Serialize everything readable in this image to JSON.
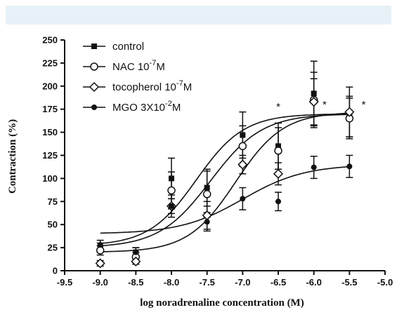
{
  "chart_data": {
    "type": "scatter",
    "xlabel": "log noradrenaline concentration (M)",
    "ylabel": "Contraction (%)",
    "xlim": [
      -9.5,
      -5.0
    ],
    "ylim": [
      0,
      250
    ],
    "x_ticks": [
      "-9.5",
      "-9.0",
      "-8.5",
      "-8.0",
      "-7.5",
      "-7.0",
      "-6.5",
      "-6.0",
      "-5.5",
      "-5.0"
    ],
    "y_ticks": [
      "0",
      "25",
      "50",
      "75",
      "100",
      "125",
      "150",
      "175",
      "200",
      "225",
      "250"
    ],
    "legend_position": "top-left",
    "significance_marks": [
      {
        "label": "*",
        "x": -6.5,
        "y": 178
      },
      {
        "label": "*",
        "x": -5.85,
        "y": 180
      },
      {
        "label": "*",
        "x": -5.3,
        "y": 180
      }
    ],
    "series": [
      {
        "name": "control",
        "marker": "square",
        "x": [
          -9.0,
          -8.5,
          -8.0,
          -7.5,
          -7.0,
          -6.5,
          -6.0,
          -5.5
        ],
        "y": [
          25,
          20,
          100,
          90,
          147,
          135,
          192,
          167
        ],
        "err": [
          5,
          5,
          22,
          20,
          25,
          25,
          35,
          22
        ],
        "curve": {
          "bottom": 27,
          "top": 170,
          "log_ec50": -7.65,
          "hill": 1.3
        }
      },
      {
        "name": "NAC 10^-7M",
        "legend_parts": [
          "NAC 10",
          "-7",
          "M"
        ],
        "marker": "circle-open",
        "x": [
          -9.0,
          -8.5,
          -8.0,
          -7.5,
          -7.0,
          -6.5,
          -6.0,
          -5.5
        ],
        "y": [
          22,
          15,
          87,
          83,
          135,
          130,
          185,
          165
        ],
        "err": [
          5,
          5,
          20,
          25,
          22,
          25,
          30,
          22
        ],
        "curve": {
          "bottom": 25,
          "top": 170,
          "log_ec50": -7.45,
          "hill": 1.2
        }
      },
      {
        "name": "tocopherol 10^-7M",
        "legend_parts": [
          "tocopherol 10",
          "-7",
          "M"
        ],
        "marker": "diamond-open",
        "x": [
          -9.0,
          -8.5,
          -8.0,
          -7.5,
          -7.0,
          -6.5,
          -6.0,
          -5.5
        ],
        "y": [
          8,
          10,
          70,
          60,
          115,
          105,
          183,
          172
        ],
        "err": [
          3,
          3,
          12,
          15,
          10,
          12,
          25,
          27
        ],
        "curve": {
          "bottom": 20,
          "top": 172,
          "log_ec50": -7.1,
          "hill": 1.3
        }
      },
      {
        "name": "MGO 3X10^-2M",
        "legend_parts": [
          "MGO 3X10",
          "-2",
          "M"
        ],
        "marker": "circle-filled",
        "x": [
          -9.0,
          -8.5,
          -8.0,
          -7.5,
          -7.0,
          -6.5,
          -6.0,
          -5.5
        ],
        "y": [
          28,
          20,
          70,
          53,
          78,
          75,
          112,
          113
        ],
        "err": [
          5,
          5,
          8,
          10,
          12,
          10,
          12,
          12
        ],
        "curve": {
          "bottom": 40,
          "top": 115,
          "log_ec50": -7.0,
          "hill": 1.0
        }
      }
    ]
  }
}
